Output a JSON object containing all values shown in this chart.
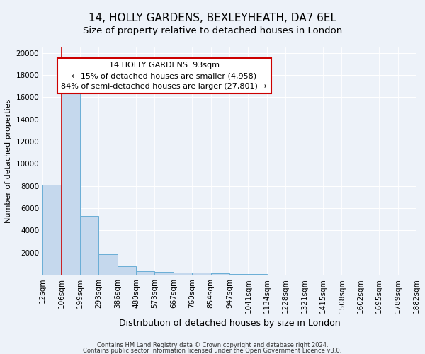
{
  "title1": "14, HOLLY GARDENS, BEXLEYHEATH, DA7 6EL",
  "title2": "Size of property relative to detached houses in London",
  "xlabel": "Distribution of detached houses by size in London",
  "ylabel": "Number of detached properties",
  "bar_values": [
    8100,
    16500,
    5300,
    1850,
    800,
    300,
    250,
    200,
    200,
    150,
    80,
    50,
    30,
    20,
    15,
    10,
    8,
    6,
    5,
    4
  ],
  "bin_labels": [
    "12sqm",
    "106sqm",
    "199sqm",
    "293sqm",
    "386sqm",
    "480sqm",
    "573sqm",
    "667sqm",
    "760sqm",
    "854sqm",
    "947sqm",
    "1041sqm",
    "1134sqm",
    "1228sqm",
    "1321sqm",
    "1415sqm",
    "1508sqm",
    "1602sqm",
    "1695sqm",
    "1789sqm",
    "1882sqm"
  ],
  "bar_color": "#c5d8ed",
  "bar_edge_color": "#6aaed6",
  "vline_x": 1,
  "vline_color": "#cc0000",
  "annotation_text": "14 HOLLY GARDENS: 93sqm\n← 15% of detached houses are smaller (4,958)\n84% of semi-detached houses are larger (27,801) →",
  "annotation_box_color": "#ffffff",
  "annotation_box_edge": "#cc0000",
  "ylim": [
    0,
    20500
  ],
  "yticks": [
    0,
    2000,
    4000,
    6000,
    8000,
    10000,
    12000,
    14000,
    16000,
    18000,
    20000
  ],
  "footer1": "Contains HM Land Registry data © Crown copyright and database right 2024.",
  "footer2": "Contains public sector information licensed under the Open Government Licence v3.0.",
  "bg_color": "#edf2f9",
  "grid_color": "#ffffff",
  "title_fontsize": 11,
  "subtitle_fontsize": 9.5,
  "ylabel_fontsize": 8,
  "xlabel_fontsize": 9,
  "tick_fontsize": 7.5,
  "footer_fontsize": 6,
  "annot_fontsize": 8
}
